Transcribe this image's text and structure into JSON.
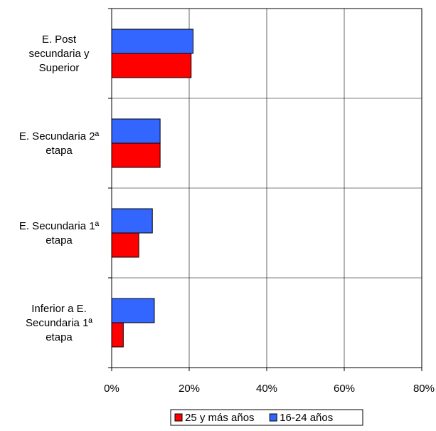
{
  "chart_data": {
    "type": "bar",
    "orientation": "horizontal",
    "categories": [
      [
        "E. Post",
        "secundaria y",
        "Superior"
      ],
      [
        "E. Secundaria 2ª",
        "etapa"
      ],
      [
        "E. Secundaria 1ª",
        "etapa"
      ],
      [
        "Inferior a E.",
        "Secundaria 1ª",
        "etapa"
      ]
    ],
    "series": [
      {
        "name": "16-24 años",
        "color": "#3366ff",
        "values": [
          21,
          12.5,
          10.5,
          11
        ]
      },
      {
        "name": "25 y más años",
        "color": "#ff0000",
        "values": [
          20.5,
          12.5,
          7,
          3
        ]
      }
    ],
    "xlim": [
      0,
      80
    ],
    "xticks": [
      "0%",
      "20%",
      "40%",
      "60%",
      "80%"
    ],
    "grid": true,
    "legend": {
      "position": "bottom",
      "entries": [
        {
          "label": "25 y más años",
          "color": "#ff0000"
        },
        {
          "label": "16-24 años",
          "color": "#3366ff"
        }
      ]
    },
    "title": "",
    "xlabel": "",
    "ylabel": ""
  }
}
